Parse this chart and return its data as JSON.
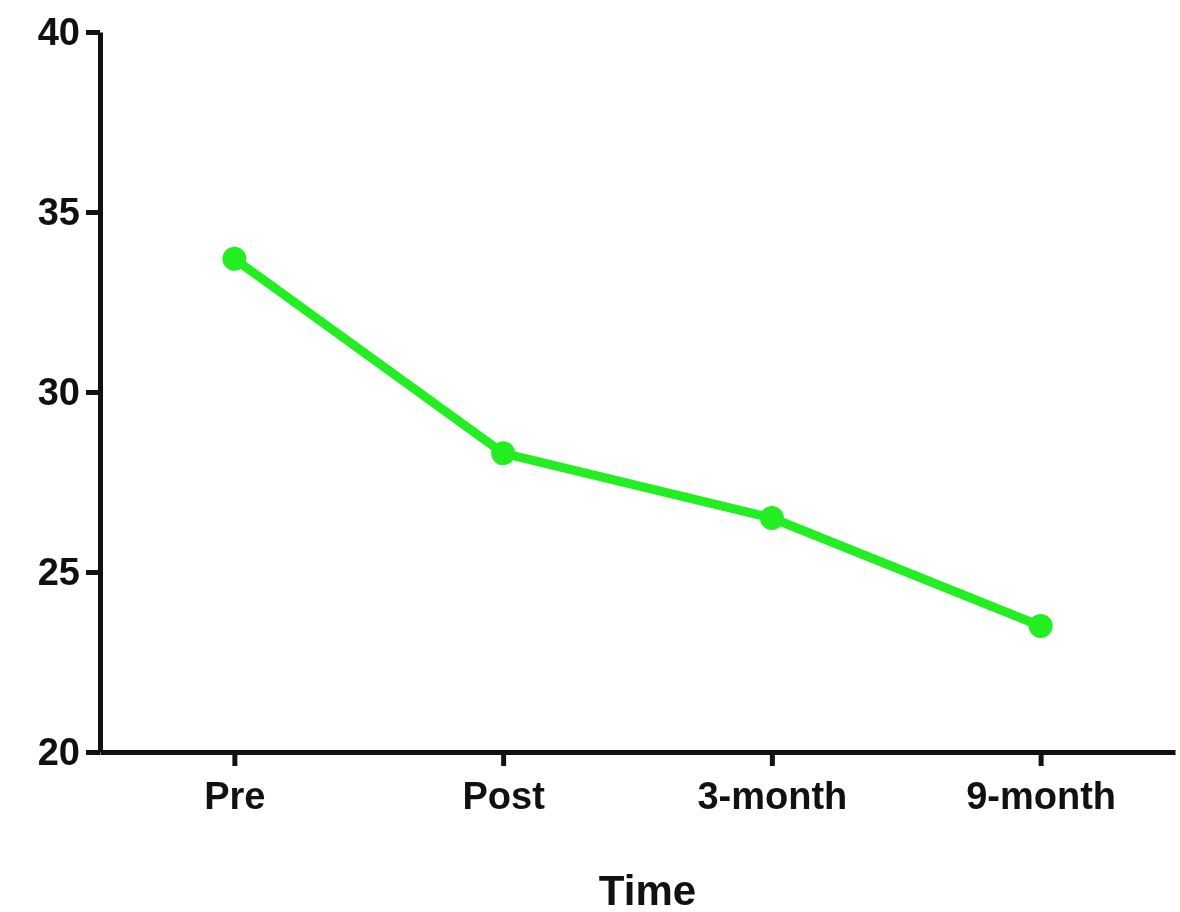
{
  "chart_data": {
    "type": "line",
    "xlabel": "Time",
    "categories": [
      "Pre",
      "Post",
      "3-month",
      "9-month"
    ],
    "series": [
      {
        "color": "#22ee22",
        "values": [
          33.7,
          28.3,
          26.5,
          23.5
        ]
      }
    ],
    "ylim": [
      20,
      40
    ],
    "yticks": [
      20,
      25,
      30,
      35,
      40
    ],
    "grid": false,
    "marker": "circle",
    "line_style": "solid"
  }
}
